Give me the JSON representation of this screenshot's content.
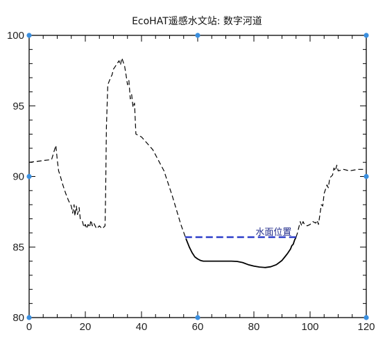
{
  "chart_data": {
    "type": "line",
    "title": "EcoHAT遥感水文站: 数字河道",
    "xlabel": "",
    "ylabel": "",
    "xlim": [
      0,
      120
    ],
    "ylim": [
      80,
      100
    ],
    "xticks": [
      "0",
      "20",
      "40",
      "60",
      "80",
      "100",
      "120"
    ],
    "yticks": [
      "80",
      "85",
      "90",
      "95",
      "100"
    ],
    "grid": false,
    "series": [
      {
        "style": "dashed",
        "color": "#000000",
        "x": [
          0,
          4,
          8,
          9.5,
          10,
          10.5,
          11,
          12,
          13,
          14,
          15,
          15.5,
          16,
          16.3,
          16.8,
          17.2,
          17.8,
          18.2,
          19,
          19.5,
          20,
          20.5,
          21,
          21.5,
          22,
          22.5,
          23,
          24,
          25,
          25.5,
          26,
          27,
          27.2,
          27.5,
          28,
          29,
          29.5,
          30,
          31,
          32,
          32.5,
          33,
          33.5,
          34,
          34.5,
          35,
          35.5,
          36,
          36.5,
          37,
          37.5,
          38,
          40,
          44,
          48,
          51,
          54,
          55.8
        ],
        "y": [
          91,
          91.1,
          91.2,
          92.2,
          91.2,
          90.4,
          90.1,
          89.4,
          88.8,
          88.3,
          87.9,
          87.4,
          88.0,
          87.2,
          87.9,
          87.3,
          87.8,
          87.0,
          86.8,
          86.4,
          86.6,
          86.3,
          86.6,
          86.4,
          86.9,
          86.5,
          86.7,
          86.3,
          86.5,
          86.4,
          86.3,
          86.5,
          88.5,
          93.5,
          96.5,
          97.0,
          97.2,
          97.6,
          97.9,
          98.2,
          97.9,
          98.4,
          98.1,
          97.8,
          97.2,
          96.5,
          96.8,
          95.5,
          95.8,
          94.9,
          95.2,
          93.0,
          92.8,
          91.9,
          90.4,
          88.6,
          86.6,
          85.6
        ]
      },
      {
        "style": "solid",
        "color": "#000000",
        "x": [
          55.8,
          57,
          58,
          59,
          60,
          61,
          62,
          64,
          66,
          68,
          70,
          72,
          74,
          76,
          78,
          80,
          82,
          84,
          86,
          88,
          90,
          91,
          92,
          93,
          93.5,
          94,
          94.5,
          95
        ],
        "y": [
          85.6,
          85.0,
          84.6,
          84.3,
          84.15,
          84.05,
          84.0,
          84.0,
          84.0,
          84.0,
          84.0,
          84.0,
          83.98,
          83.9,
          83.75,
          83.65,
          83.58,
          83.55,
          83.6,
          83.75,
          84.05,
          84.3,
          84.55,
          84.85,
          85.1,
          85.2,
          85.5,
          85.7
        ]
      },
      {
        "style": "dashed",
        "color": "#000000",
        "x": [
          95,
          95.5,
          96,
          96.5,
          97,
          97.5,
          98,
          99,
          100,
          101,
          102,
          102.5,
          103,
          104,
          104.5,
          105,
          106,
          106.5,
          107,
          107.5,
          108,
          108.5,
          109,
          109.5,
          110,
          112,
          114,
          117,
          120
        ],
        "y": [
          85.7,
          86.0,
          86.4,
          86.8,
          86.5,
          86.8,
          86.6,
          86.5,
          86.6,
          86.8,
          86.7,
          86.9,
          86.6,
          88.0,
          87.9,
          88.8,
          89.4,
          89.2,
          89.9,
          90.0,
          90.1,
          90.6,
          90.4,
          90.8,
          90.4,
          90.5,
          90.4,
          90.5,
          90.5
        ]
      }
    ],
    "water_level": {
      "label": "水面位置",
      "y": 85.7,
      "x_start": 55.5,
      "x_end": 95.5,
      "color": "#2b3cc9"
    },
    "marker_color": "#3a8fe0"
  }
}
